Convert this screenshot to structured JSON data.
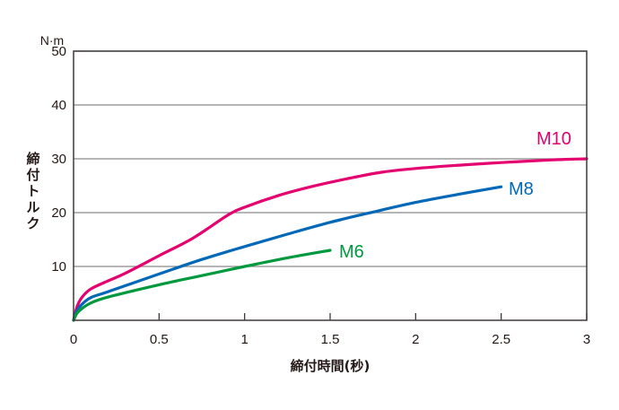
{
  "chart_data": {
    "type": "line",
    "title": "",
    "xlabel": "締付時間(秒)",
    "ylabel": "締付トルク",
    "yunit": "N·m",
    "xlim": [
      0,
      3
    ],
    "ylim": [
      0,
      50
    ],
    "xticks": [
      "0",
      "0.5",
      "1",
      "1.5",
      "2",
      "2.5",
      "3"
    ],
    "yticks": [
      "10",
      "20",
      "30",
      "40",
      "50"
    ],
    "grid": "horizontal",
    "legend": "inline labels at line ends",
    "series": [
      {
        "name": "M10",
        "color": "#e4006e",
        "x": [
          0,
          0.02,
          0.05,
          0.1,
          0.2,
          0.3,
          0.5,
          0.7,
          0.9,
          1.0,
          1.2,
          1.4,
          1.6,
          1.8,
          2.0,
          2.2,
          2.5,
          2.8,
          3.0
        ],
        "y": [
          0,
          2.5,
          4.3,
          5.8,
          7.3,
          8.7,
          12.0,
          15.3,
          19.5,
          21.0,
          23.2,
          24.9,
          26.3,
          27.5,
          28.2,
          28.7,
          29.3,
          29.8,
          30.0
        ]
      },
      {
        "name": "M8",
        "color": "#0068b7",
        "x": [
          0,
          0.02,
          0.05,
          0.1,
          0.2,
          0.5,
          0.75,
          1.0,
          1.25,
          1.5,
          1.75,
          2.0,
          2.25,
          2.5
        ],
        "y": [
          0,
          1.8,
          3.0,
          4.2,
          5.3,
          8.6,
          11.3,
          13.7,
          16.0,
          18.2,
          20.1,
          21.9,
          23.4,
          24.8
        ]
      },
      {
        "name": "M6",
        "color": "#00993e",
        "x": [
          0,
          0.02,
          0.05,
          0.1,
          0.2,
          0.5,
          0.75,
          1.0,
          1.25,
          1.5
        ],
        "y": [
          0,
          1.3,
          2.2,
          3.2,
          4.3,
          6.6,
          8.3,
          10.0,
          11.6,
          13.0
        ]
      }
    ]
  }
}
